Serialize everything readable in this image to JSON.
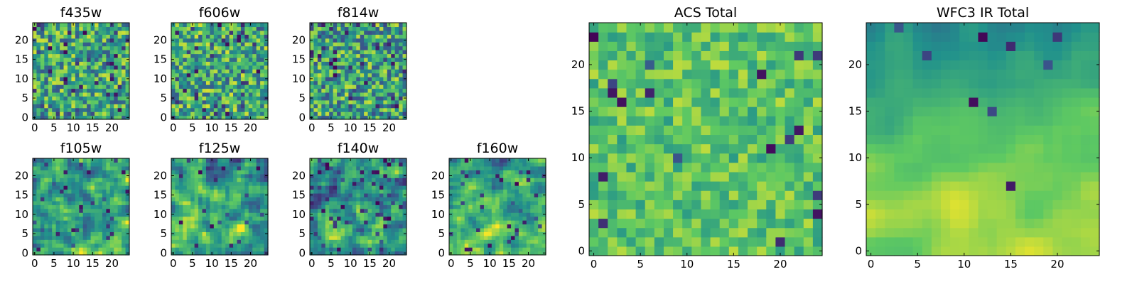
{
  "figure": {
    "background": "#ffffff"
  },
  "colormap": [
    "#440154",
    "#3b528b",
    "#21918c",
    "#5ec962",
    "#fde725"
  ],
  "chart_data": [
    {
      "type": "heatmap",
      "title": "f435w",
      "grid": [
        25,
        25
      ],
      "xlim": [
        -0.5,
        24.5
      ],
      "ylim": [
        -0.5,
        24.5
      ],
      "xticks": [
        "0",
        "5",
        "10",
        "15",
        "20"
      ],
      "yticks": [
        "0",
        "5",
        "10",
        "15",
        "20"
      ],
      "seed": 11,
      "base": 0.6,
      "gradient": 0.0,
      "noise": 0.33,
      "dark_rate": 0.08,
      "smooth": 0
    },
    {
      "type": "heatmap",
      "title": "f606w",
      "grid": [
        25,
        25
      ],
      "xlim": [
        -0.5,
        24.5
      ],
      "ylim": [
        -0.5,
        24.5
      ],
      "xticks": [
        "0",
        "5",
        "10",
        "15",
        "20"
      ],
      "yticks": [
        "0",
        "5",
        "10",
        "15",
        "20"
      ],
      "seed": 23,
      "base": 0.62,
      "gradient": 0.0,
      "noise": 0.32,
      "dark_rate": 0.07,
      "smooth": 0
    },
    {
      "type": "heatmap",
      "title": "f814w",
      "grid": [
        25,
        25
      ],
      "xlim": [
        -0.5,
        24.5
      ],
      "ylim": [
        -0.5,
        24.5
      ],
      "xticks": [
        "0",
        "5",
        "10",
        "15",
        "20"
      ],
      "yticks": [
        "0",
        "5",
        "10",
        "15",
        "20"
      ],
      "seed": 37,
      "base": 0.58,
      "gradient": 0.0,
      "noise": 0.34,
      "dark_rate": 0.09,
      "smooth": 0
    },
    {
      "type": "heatmap",
      "title": "f105w",
      "grid": [
        25,
        25
      ],
      "xlim": [
        -0.5,
        24.5
      ],
      "ylim": [
        -0.5,
        24.5
      ],
      "xticks": [
        "0",
        "5",
        "10",
        "15",
        "20"
      ],
      "yticks": [
        "0",
        "5",
        "10",
        "15",
        "20"
      ],
      "seed": 41,
      "base": 0.58,
      "gradient": 0.1,
      "noise": 0.3,
      "dark_rate": 0.05,
      "smooth": 1
    },
    {
      "type": "heatmap",
      "title": "f125w",
      "grid": [
        25,
        25
      ],
      "xlim": [
        -0.5,
        24.5
      ],
      "ylim": [
        -0.5,
        24.5
      ],
      "xticks": [
        "0",
        "5",
        "10",
        "15",
        "20"
      ],
      "yticks": [
        "0",
        "5",
        "10",
        "15",
        "20"
      ],
      "seed": 53,
      "base": 0.6,
      "gradient": 0.12,
      "noise": 0.28,
      "dark_rate": 0.04,
      "smooth": 1
    },
    {
      "type": "heatmap",
      "title": "f140w",
      "grid": [
        25,
        25
      ],
      "xlim": [
        -0.5,
        24.5
      ],
      "ylim": [
        -0.5,
        24.5
      ],
      "xticks": [
        "0",
        "5",
        "10",
        "15",
        "20"
      ],
      "yticks": [
        "0",
        "5",
        "10",
        "15",
        "20"
      ],
      "seed": 67,
      "base": 0.55,
      "gradient": 0.1,
      "noise": 0.32,
      "dark_rate": 0.07,
      "smooth": 1
    },
    {
      "type": "heatmap",
      "title": "f160w",
      "grid": [
        25,
        25
      ],
      "xlim": [
        -0.5,
        24.5
      ],
      "ylim": [
        -0.5,
        24.5
      ],
      "xticks": [
        "0",
        "5",
        "10",
        "15",
        "20"
      ],
      "yticks": [
        "0",
        "5",
        "10",
        "15",
        "20"
      ],
      "seed": 71,
      "base": 0.62,
      "gradient": 0.22,
      "noise": 0.26,
      "dark_rate": 0.05,
      "smooth": 1
    },
    {
      "type": "heatmap",
      "title": "ACS Total",
      "grid": [
        25,
        25
      ],
      "xlim": [
        -0.5,
        24.5
      ],
      "ylim": [
        -0.5,
        24.5
      ],
      "xticks": [
        "0",
        "5",
        "10",
        "15",
        "20"
      ],
      "yticks": [
        "0",
        "5",
        "10",
        "15",
        "20"
      ],
      "seed": 89,
      "base": 0.72,
      "gradient": 0.0,
      "noise": 0.18,
      "dark_rate": 0.03,
      "smooth": 0
    },
    {
      "type": "heatmap",
      "title": "WFC3 IR Total",
      "grid": [
        25,
        25
      ],
      "xlim": [
        -0.5,
        24.5
      ],
      "ylim": [
        -0.5,
        24.5
      ],
      "xticks": [
        "0",
        "5",
        "10",
        "15",
        "20"
      ],
      "yticks": [
        "0",
        "5",
        "10",
        "15",
        "20"
      ],
      "seed": 97,
      "base": 0.7,
      "gradient": 0.4,
      "noise": 0.1,
      "dark_rate": 0.015,
      "smooth": 2
    }
  ]
}
